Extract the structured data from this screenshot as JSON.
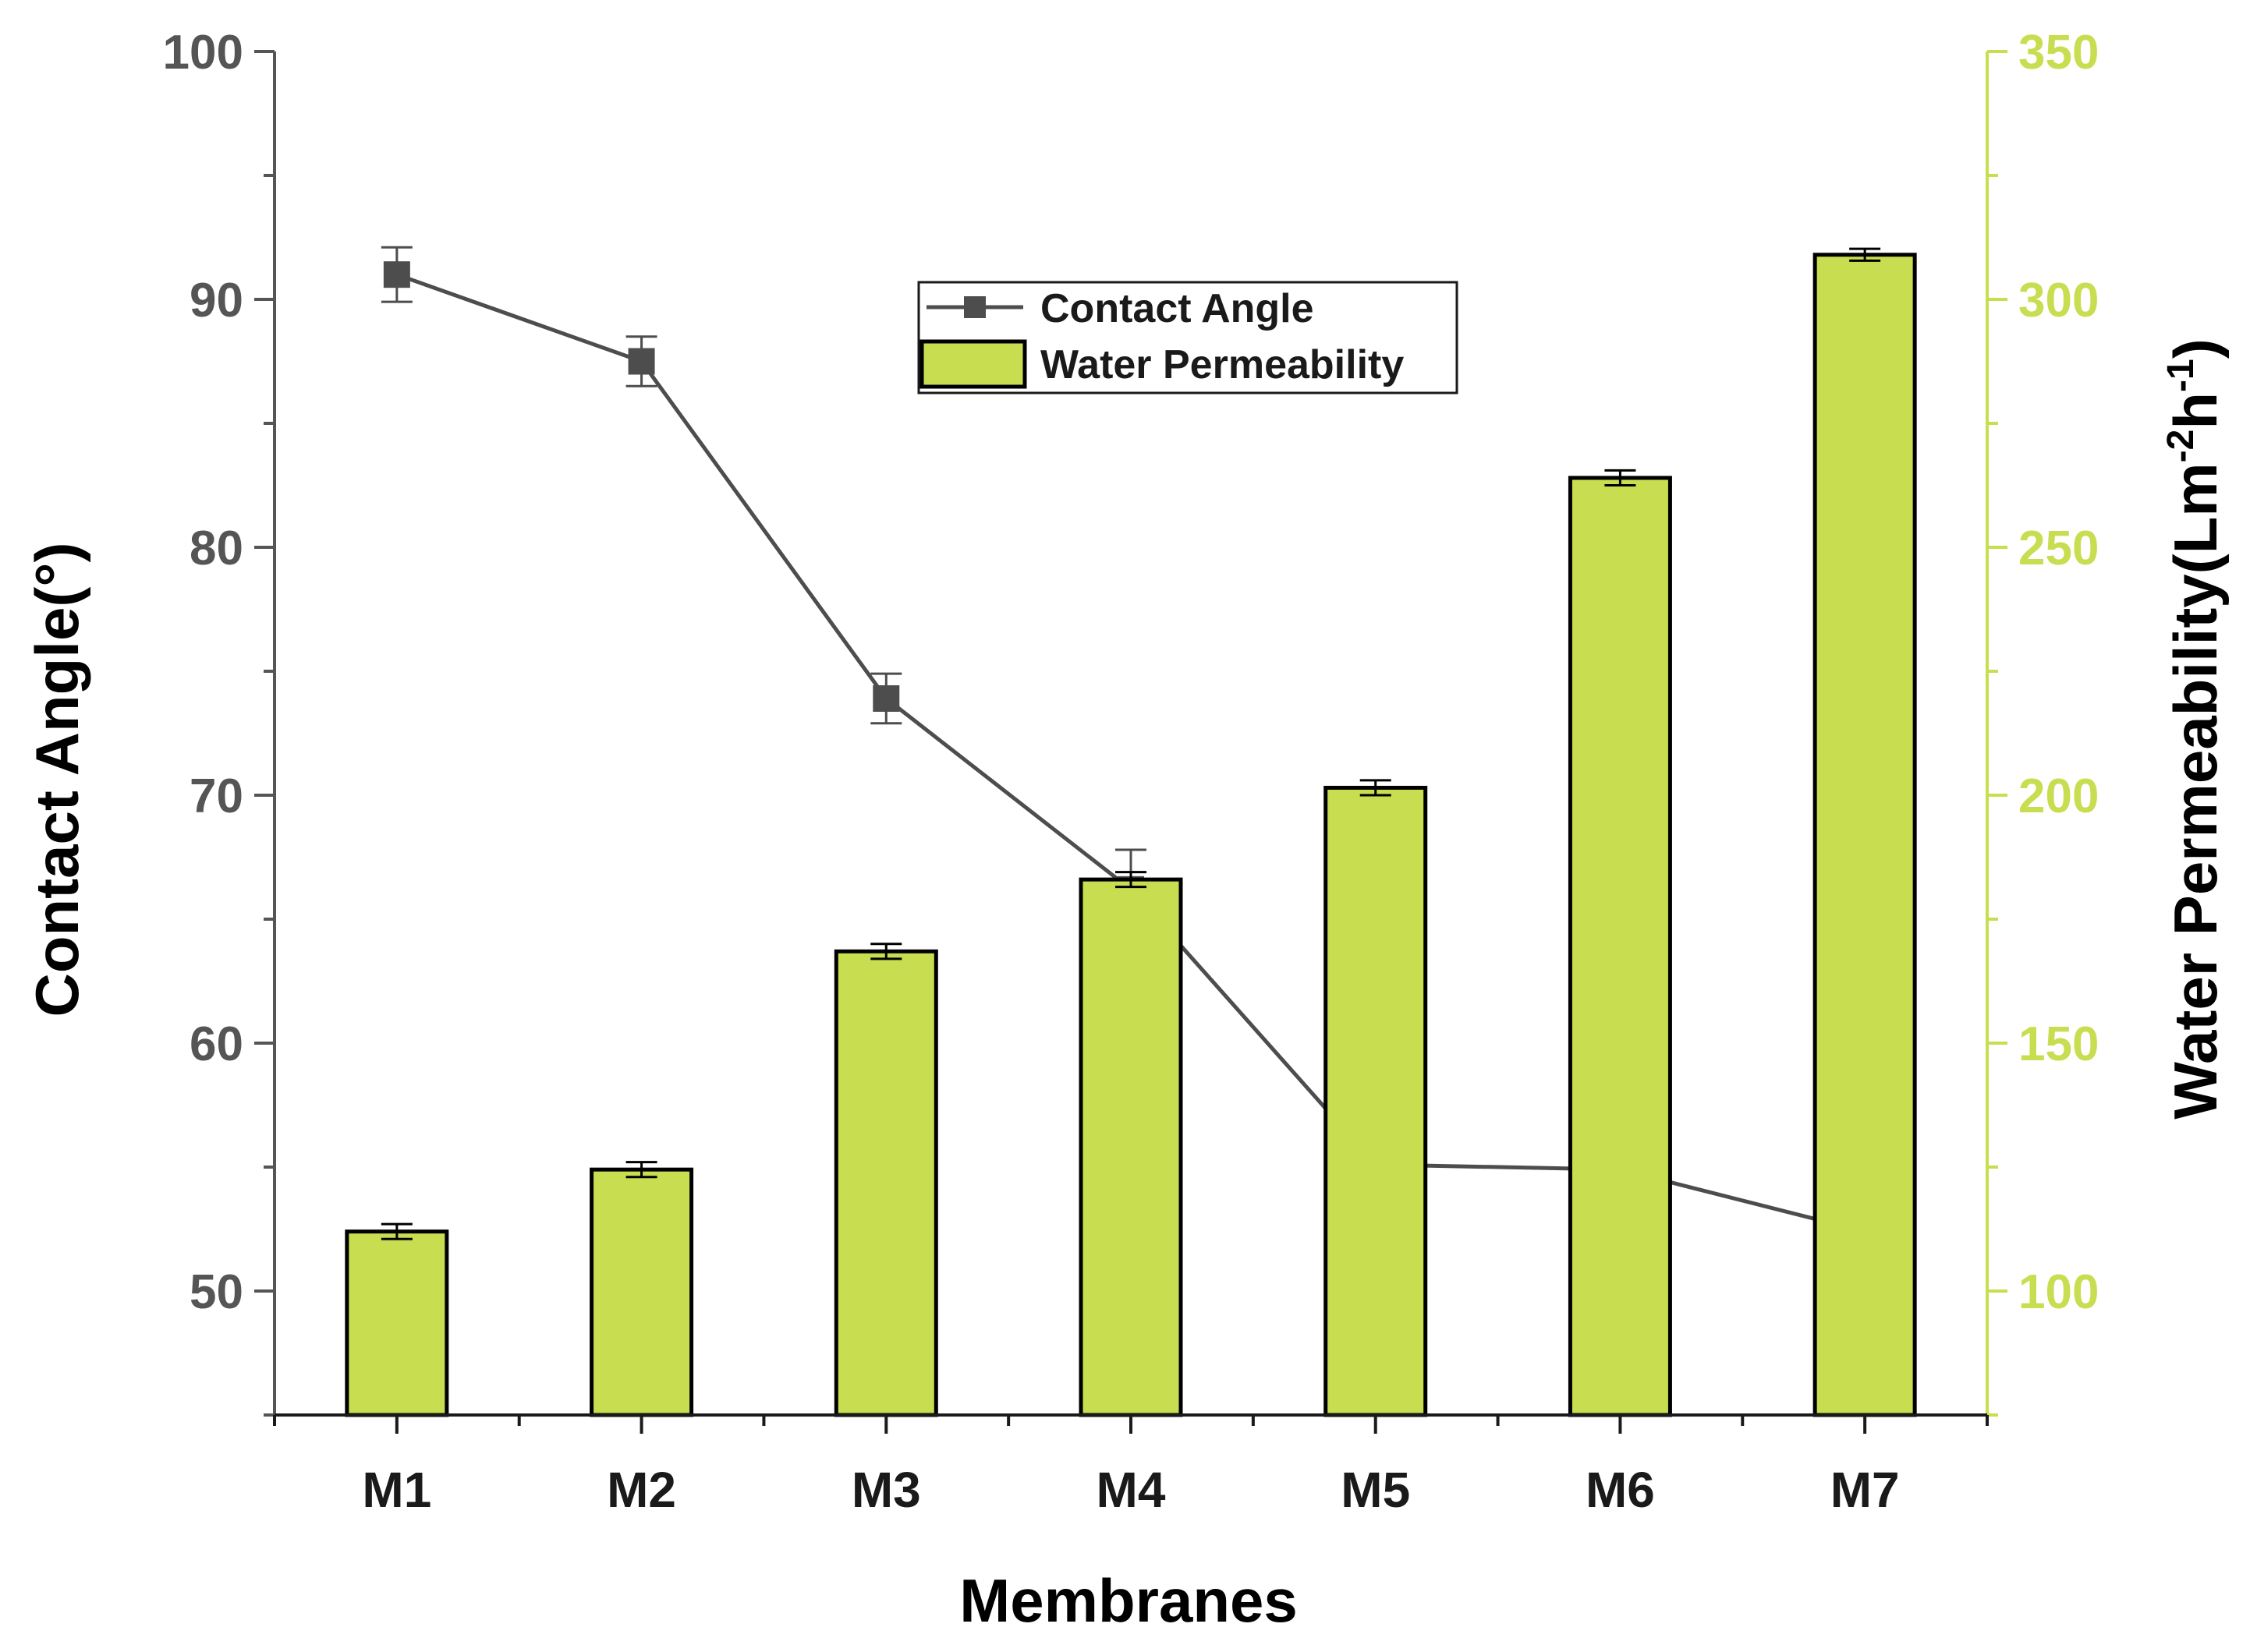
{
  "chart_data": {
    "type": "bar+line",
    "title": "",
    "categories": [
      "M1",
      "M2",
      "M3",
      "M4",
      "M5",
      "M6",
      "M7"
    ],
    "xlabel": "Membranes",
    "ylabel_left": "Contact Angle(°)",
    "ylabel_right_parts": [
      "Water Permeability(Lm",
      "-2",
      "h",
      "-1",
      ")"
    ],
    "ylim_left": [
      45,
      100
    ],
    "yticks_left": [
      50,
      60,
      70,
      80,
      90,
      100
    ],
    "ylim_right": [
      75,
      350
    ],
    "yticks_right": [
      100,
      150,
      200,
      250,
      300,
      350
    ],
    "series": [
      {
        "name": "Contact Angle",
        "kind": "line",
        "axis": "left",
        "values": [
          91.0,
          87.5,
          73.9,
          66.2,
          55.1,
          54.9,
          52.4
        ],
        "errors": [
          1.1,
          1.0,
          1.0,
          1.6,
          0.6,
          0.6,
          0.5
        ],
        "color": "#4d4d4d"
      },
      {
        "name": "Water Permeability",
        "kind": "bar",
        "axis": "right",
        "values": [
          112,
          124.5,
          168.5,
          183,
          201.5,
          264,
          309
        ],
        "errors": [
          1.5,
          1.5,
          1.5,
          1.5,
          1.5,
          1.5,
          1.2
        ],
        "color": "#c9dd50"
      }
    ],
    "legend": {
      "position": "top-center",
      "entries": [
        "Contact Angle",
        "Water Permeability"
      ]
    }
  },
  "colors": {
    "line": "#4d4d4d",
    "bar_fill": "#c9dd50",
    "right_axis": "#c9dd50",
    "left_axis": "#555555"
  }
}
